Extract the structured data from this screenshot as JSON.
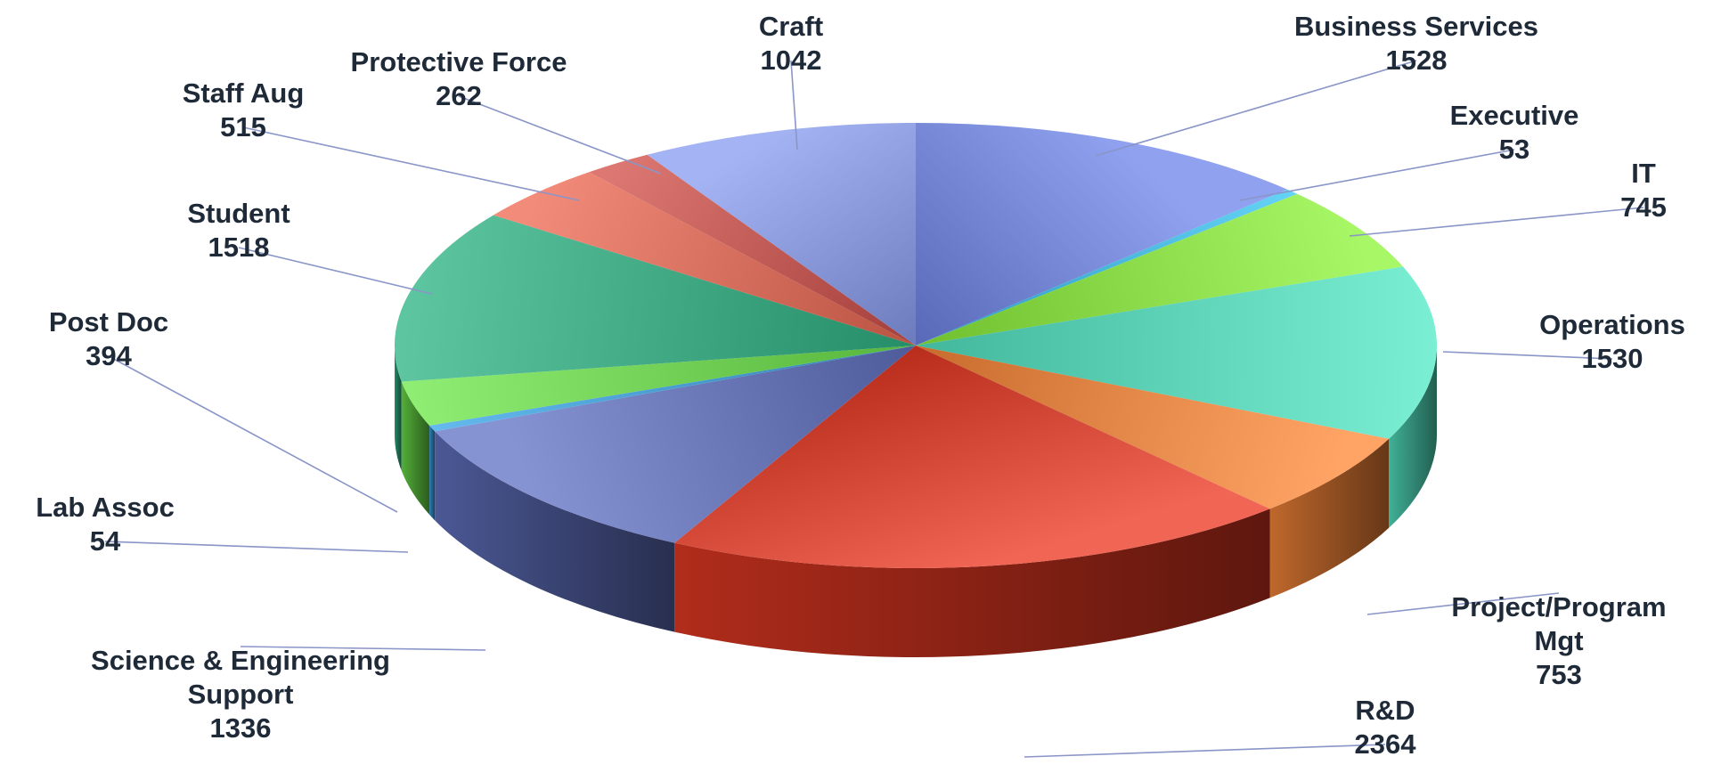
{
  "chart_data": {
    "type": "pie",
    "style": "3d",
    "slices": [
      {
        "label": [
          "Business Services"
        ],
        "value": 1528,
        "value_text": "1528",
        "color": "#6f86ea"
      },
      {
        "label": [
          "Executive"
        ],
        "value": 53,
        "value_text": "53",
        "color": "#38c6f4"
      },
      {
        "label": [
          "IT"
        ],
        "value": 745,
        "value_text": "745",
        "color": "#8ff53c"
      },
      {
        "label": [
          "Operations"
        ],
        "value": 1530,
        "value_text": "1530",
        "color": "#55ebc8"
      },
      {
        "label": [
          "Project/Program",
          "Mgt"
        ],
        "value": 753,
        "value_text": "753",
        "color": "#ff8a3a"
      },
      {
        "label": [
          "R&D"
        ],
        "value": 2364,
        "value_text": "2364",
        "color": "#ec3a24"
      },
      {
        "label": [
          "Science & Engineering",
          "Support"
        ],
        "value": 1336,
        "value_text": "1336",
        "color": "#6475c6"
      },
      {
        "label": [
          "Lab Assoc"
        ],
        "value": 54,
        "value_text": "54",
        "color": "#3aa6e8"
      },
      {
        "label": [
          "Post Doc"
        ],
        "value": 394,
        "value_text": "394",
        "color": "#6ee84a"
      },
      {
        "label": [
          "Student"
        ],
        "value": 1518,
        "value_text": "1518",
        "color": "#2fb584"
      },
      {
        "label": [
          "Staff Aug"
        ],
        "value": 515,
        "value_text": "515",
        "color": "#ee6a55"
      },
      {
        "label": [
          "Protective Force"
        ],
        "value": 262,
        "value_text": "262",
        "color": "#d2504a"
      },
      {
        "label": [
          "Craft"
        ],
        "value": 1042,
        "value_text": "1042",
        "color": "#8a9ef0"
      }
    ]
  }
}
